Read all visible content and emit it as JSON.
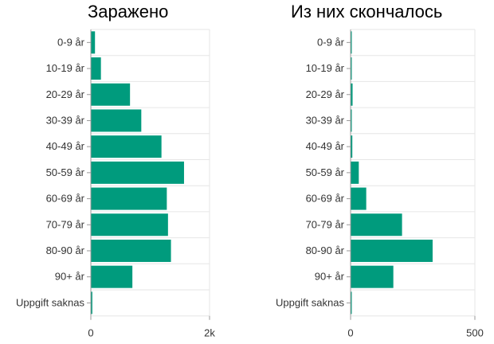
{
  "colors": {
    "bar": "#009b7d",
    "grid": "#e6e6e6",
    "axis": "#999999"
  },
  "chart_data": [
    {
      "type": "bar",
      "orientation": "horizontal",
      "title": "Заражено",
      "categories": [
        "0-9 år",
        "10-19 år",
        "20-29 år",
        "30-39 år",
        "40-49 år",
        "50-59 år",
        "60-69 år",
        "70-79 år",
        "80-90 år",
        "90+ år",
        "Uppgift saknas"
      ],
      "values": [
        70,
        170,
        660,
        850,
        1190,
        1570,
        1280,
        1300,
        1350,
        700,
        25
      ],
      "xlim": [
        0,
        2000
      ],
      "xticks": [
        {
          "value": 0,
          "label": "0"
        },
        {
          "value": 2000,
          "label": "2k"
        }
      ],
      "grid": true
    },
    {
      "type": "bar",
      "orientation": "horizontal",
      "title": "Из них скончалось",
      "categories": [
        "0-9 år",
        "10-19 år",
        "20-29 år",
        "30-39 år",
        "40-49 år",
        "50-59 år",
        "60-69 år",
        "70-79 år",
        "80-90 år",
        "90+ år",
        "Uppgift saknas"
      ],
      "values": [
        2,
        2,
        8,
        2,
        7,
        33,
        63,
        207,
        330,
        172,
        3
      ],
      "xlim": [
        0,
        500
      ],
      "xticks": [
        {
          "value": 0,
          "label": "0"
        },
        {
          "value": 500,
          "label": "500"
        }
      ],
      "grid": true
    }
  ]
}
